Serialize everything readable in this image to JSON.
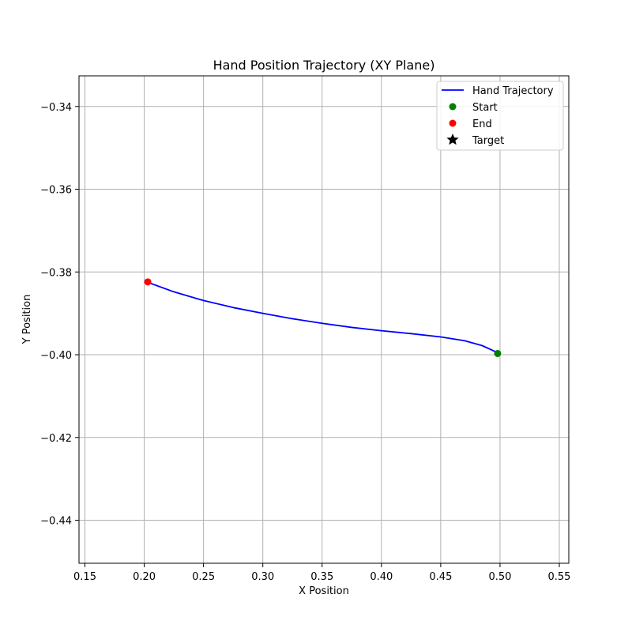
{
  "chart_data": {
    "type": "line",
    "title": "Hand Position Trajectory (XY Plane)",
    "xlabel": "X Position",
    "ylabel": "Y Position",
    "xlim": [
      0.145,
      0.558
    ],
    "ylim": [
      -0.4504,
      -0.3326
    ],
    "xticks": [
      0.15,
      0.2,
      0.25,
      0.3,
      0.35,
      0.4,
      0.45,
      0.5,
      0.55
    ],
    "xtick_labels": [
      "0.15",
      "0.20",
      "0.25",
      "0.30",
      "0.35",
      "0.40",
      "0.45",
      "0.50",
      "0.55"
    ],
    "yticks": [
      -0.34,
      -0.36,
      -0.38,
      -0.4,
      -0.42,
      -0.44
    ],
    "ytick_labels": [
      "−0.34",
      "−0.36",
      "−0.38",
      "−0.40",
      "−0.42",
      "−0.44"
    ],
    "grid": true,
    "legend_position": "top-right",
    "series": [
      {
        "name": "Hand Trajectory",
        "kind": "line",
        "color": "#0000ff",
        "x": [
          0.203,
          0.225,
          0.25,
          0.275,
          0.3,
          0.325,
          0.35,
          0.375,
          0.4,
          0.425,
          0.45,
          0.47,
          0.485,
          0.498
        ],
        "y": [
          -0.3825,
          -0.3848,
          -0.3869,
          -0.3886,
          -0.39,
          -0.3913,
          -0.3924,
          -0.3934,
          -0.3942,
          -0.3949,
          -0.3957,
          -0.3966,
          -0.3978,
          -0.3995
        ]
      },
      {
        "name": "Start",
        "kind": "point",
        "color": "#008000",
        "x": [
          0.498
        ],
        "y": [
          -0.3997
        ]
      },
      {
        "name": "End",
        "kind": "point",
        "color": "#ff0000",
        "x": [
          0.203
        ],
        "y": [
          -0.3824
        ]
      },
      {
        "name": "Target",
        "kind": "star",
        "color": "#000000",
        "x": [],
        "y": []
      }
    ]
  }
}
